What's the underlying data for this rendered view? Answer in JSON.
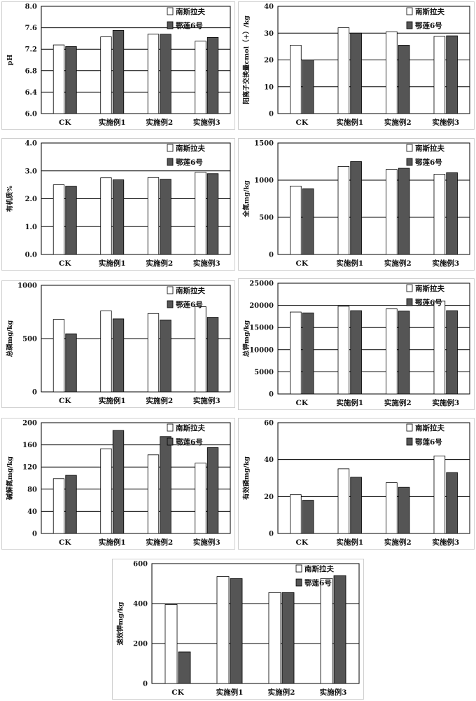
{
  "legend": {
    "series_1": "南斯拉夫",
    "series_2": "鄂莲6号"
  },
  "colors": {
    "series_1": "#ffffff",
    "series_2": "#555555"
  },
  "chart_data": [
    {
      "type": "bar",
      "ylabel": "pH",
      "ylim": [
        6.0,
        8.0
      ],
      "yticks": [
        "6.0",
        "6.4",
        "6.8",
        "7.2",
        "7.6",
        "8.0"
      ],
      "categories": [
        "CK",
        "实施例1",
        "实施例2",
        "实施例3"
      ],
      "series": [
        {
          "name": "南斯拉夫",
          "values": [
            7.28,
            7.43,
            7.48,
            7.35
          ]
        },
        {
          "name": "鄂莲6号",
          "values": [
            7.25,
            7.55,
            7.48,
            7.42
          ]
        }
      ]
    },
    {
      "type": "bar",
      "ylabel": "阳离子交换量cmol（+）/kg",
      "ylim": [
        0,
        40
      ],
      "yticks": [
        "0",
        "10",
        "20",
        "30",
        "40"
      ],
      "categories": [
        "CK",
        "实施例1",
        "实施例2",
        "实施例3"
      ],
      "series": [
        {
          "name": "南斯拉夫",
          "values": [
            25.5,
            32,
            30.5,
            28.8
          ]
        },
        {
          "name": "鄂莲6号",
          "values": [
            20,
            30,
            25.5,
            29
          ]
        }
      ]
    },
    {
      "type": "bar",
      "ylabel": "有机质%",
      "ylim": [
        0,
        4.0
      ],
      "yticks": [
        "0.0",
        "1.0",
        "2.0",
        "3.0",
        "4.0"
      ],
      "categories": [
        "CK",
        "实施例1",
        "实施例2",
        "实施例3"
      ],
      "series": [
        {
          "name": "南斯拉夫",
          "values": [
            2.5,
            2.75,
            2.76,
            2.95
          ]
        },
        {
          "name": "鄂莲6号",
          "values": [
            2.45,
            2.68,
            2.7,
            2.9
          ]
        }
      ]
    },
    {
      "type": "bar",
      "ylabel": "全氮mg/kg",
      "ylim": [
        0,
        1500
      ],
      "yticks": [
        "0",
        "500",
        "1000",
        "1500"
      ],
      "categories": [
        "CK",
        "实施例1",
        "实施例2",
        "实施例3"
      ],
      "series": [
        {
          "name": "南斯拉夫",
          "values": [
            920,
            1185,
            1145,
            1080
          ]
        },
        {
          "name": "鄂莲6号",
          "values": [
            885,
            1250,
            1160,
            1100
          ]
        }
      ]
    },
    {
      "type": "bar",
      "ylabel": "总磷mg/kg",
      "ylim": [
        0,
        1000
      ],
      "yticks": [
        "0",
        "500",
        "1000"
      ],
      "categories": [
        "CK",
        "实施例1",
        "实施例2",
        "实施例3"
      ],
      "series": [
        {
          "name": "南斯拉夫",
          "values": [
            680,
            760,
            735,
            800
          ]
        },
        {
          "name": "鄂莲6号",
          "values": [
            545,
            685,
            675,
            700
          ]
        }
      ]
    },
    {
      "type": "bar",
      "ylabel": "总钾mg/kg",
      "ylim": [
        0,
        25000
      ],
      "yticks": [
        "0",
        "5000",
        "10000",
        "15000",
        "20000",
        "25000"
      ],
      "categories": [
        "CK",
        "实施例1",
        "实施例2",
        "实施例3"
      ],
      "series": [
        {
          "name": "南斯拉夫",
          "values": [
            18500,
            19800,
            19200,
            21000
          ]
        },
        {
          "name": "鄂莲6号",
          "values": [
            18300,
            18800,
            18700,
            18800
          ]
        }
      ]
    },
    {
      "type": "bar",
      "ylabel": "碱解氮mg/kg",
      "ylim": [
        0,
        200
      ],
      "yticks": [
        "0",
        "40",
        "80",
        "120",
        "160",
        "200"
      ],
      "categories": [
        "CK",
        "实施例1",
        "实施例2",
        "实施例3"
      ],
      "series": [
        {
          "name": "南斯拉夫",
          "values": [
            99,
            153,
            142,
            127
          ]
        },
        {
          "name": "鄂莲6号",
          "values": [
            105,
            186,
            175,
            155
          ]
        }
      ]
    },
    {
      "type": "bar",
      "ylabel": "有效磷mg/kg",
      "ylim": [
        0,
        60
      ],
      "yticks": [
        "0",
        "20",
        "40",
        "60"
      ],
      "categories": [
        "CK",
        "实施例1",
        "实施例2",
        "实施例3"
      ],
      "series": [
        {
          "name": "南斯拉夫",
          "values": [
            21,
            35,
            27.5,
            42
          ]
        },
        {
          "name": "鄂莲6号",
          "values": [
            18,
            30.5,
            25,
            33
          ]
        }
      ]
    },
    {
      "type": "bar",
      "ylabel": "速效钾mg/kg",
      "ylim": [
        0,
        600
      ],
      "yticks": [
        "0",
        "200",
        "400",
        "600"
      ],
      "categories": [
        "CK",
        "实施例1",
        "实施例2",
        "实施例3"
      ],
      "series": [
        {
          "name": "南斯拉夫",
          "values": [
            395,
            535,
            455,
            525
          ]
        },
        {
          "name": "鄂莲6号",
          "values": [
            158,
            525,
            455,
            540
          ]
        }
      ]
    }
  ]
}
